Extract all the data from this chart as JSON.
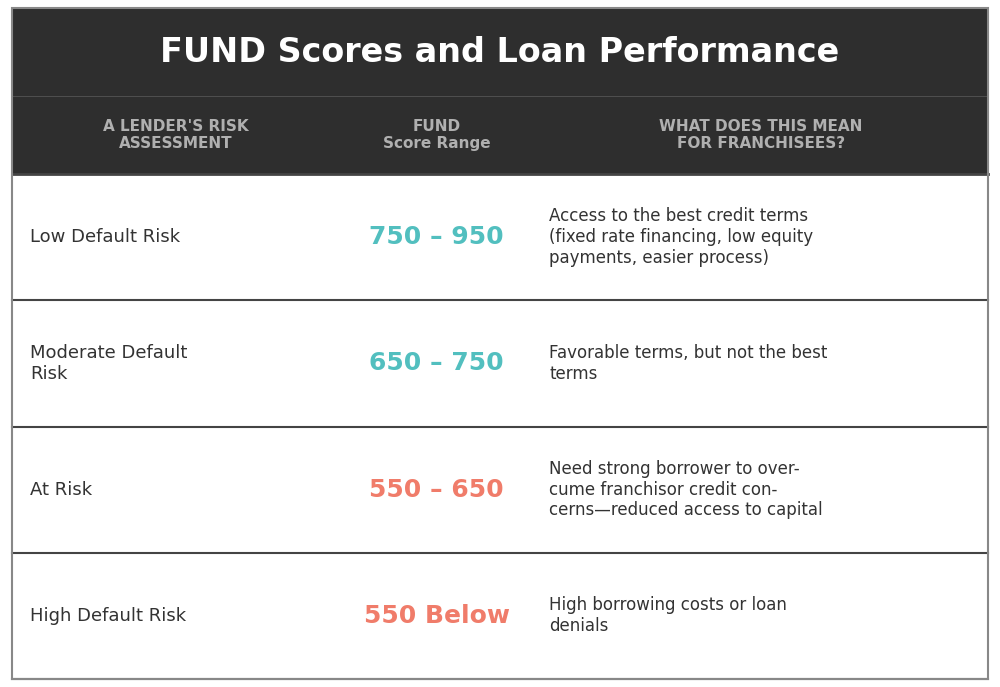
{
  "title": "FUND Scores and Loan Performance",
  "title_color": "#ffffff",
  "dark_bg_color": "#2e2e2e",
  "header_col1": "A LENDER'S RISK\nASSESSMENT",
  "header_col2": "FUND\nScore Range",
  "header_col3": "WHAT DOES THIS MEAN\nFOR FRANCHISEES?",
  "header_text_color": "#b0b0b0",
  "row_bg_color": "#ffffff",
  "row_text_color": "#333333",
  "row_border_color": "#444444",
  "teal_color": "#52bfbf",
  "salmon_color": "#f07c6a",
  "rows": [
    {
      "col1": "Low Default Risk",
      "col2": "750 – 950",
      "col2_color": "#52bfbf",
      "col3": "Access to the best credit terms\n(fixed rate financing, low equity\npayments, easier process)"
    },
    {
      "col1": "Moderate Default\nRisk",
      "col2": "650 – 750",
      "col2_color": "#52bfbf",
      "col3": "Favorable terms, but not the best\nterms"
    },
    {
      "col1": "At Risk",
      "col2": "550 – 650",
      "col2_color": "#f07c6a",
      "col3": "Need strong borrower to over-\ncume franchisor credit con-\ncerns—reduced access to capital"
    },
    {
      "col1": "High Default Risk",
      "col2": "550 Below",
      "col2_color": "#f07c6a",
      "col3": "High borrowing costs or loan\ndenials"
    }
  ],
  "title_fontsize": 24,
  "header_fontsize": 11,
  "col1_fontsize": 13,
  "col2_fontsize": 18,
  "col3_fontsize": 12,
  "outer_border_color": "#888888",
  "outer_border_lw": 1.5
}
